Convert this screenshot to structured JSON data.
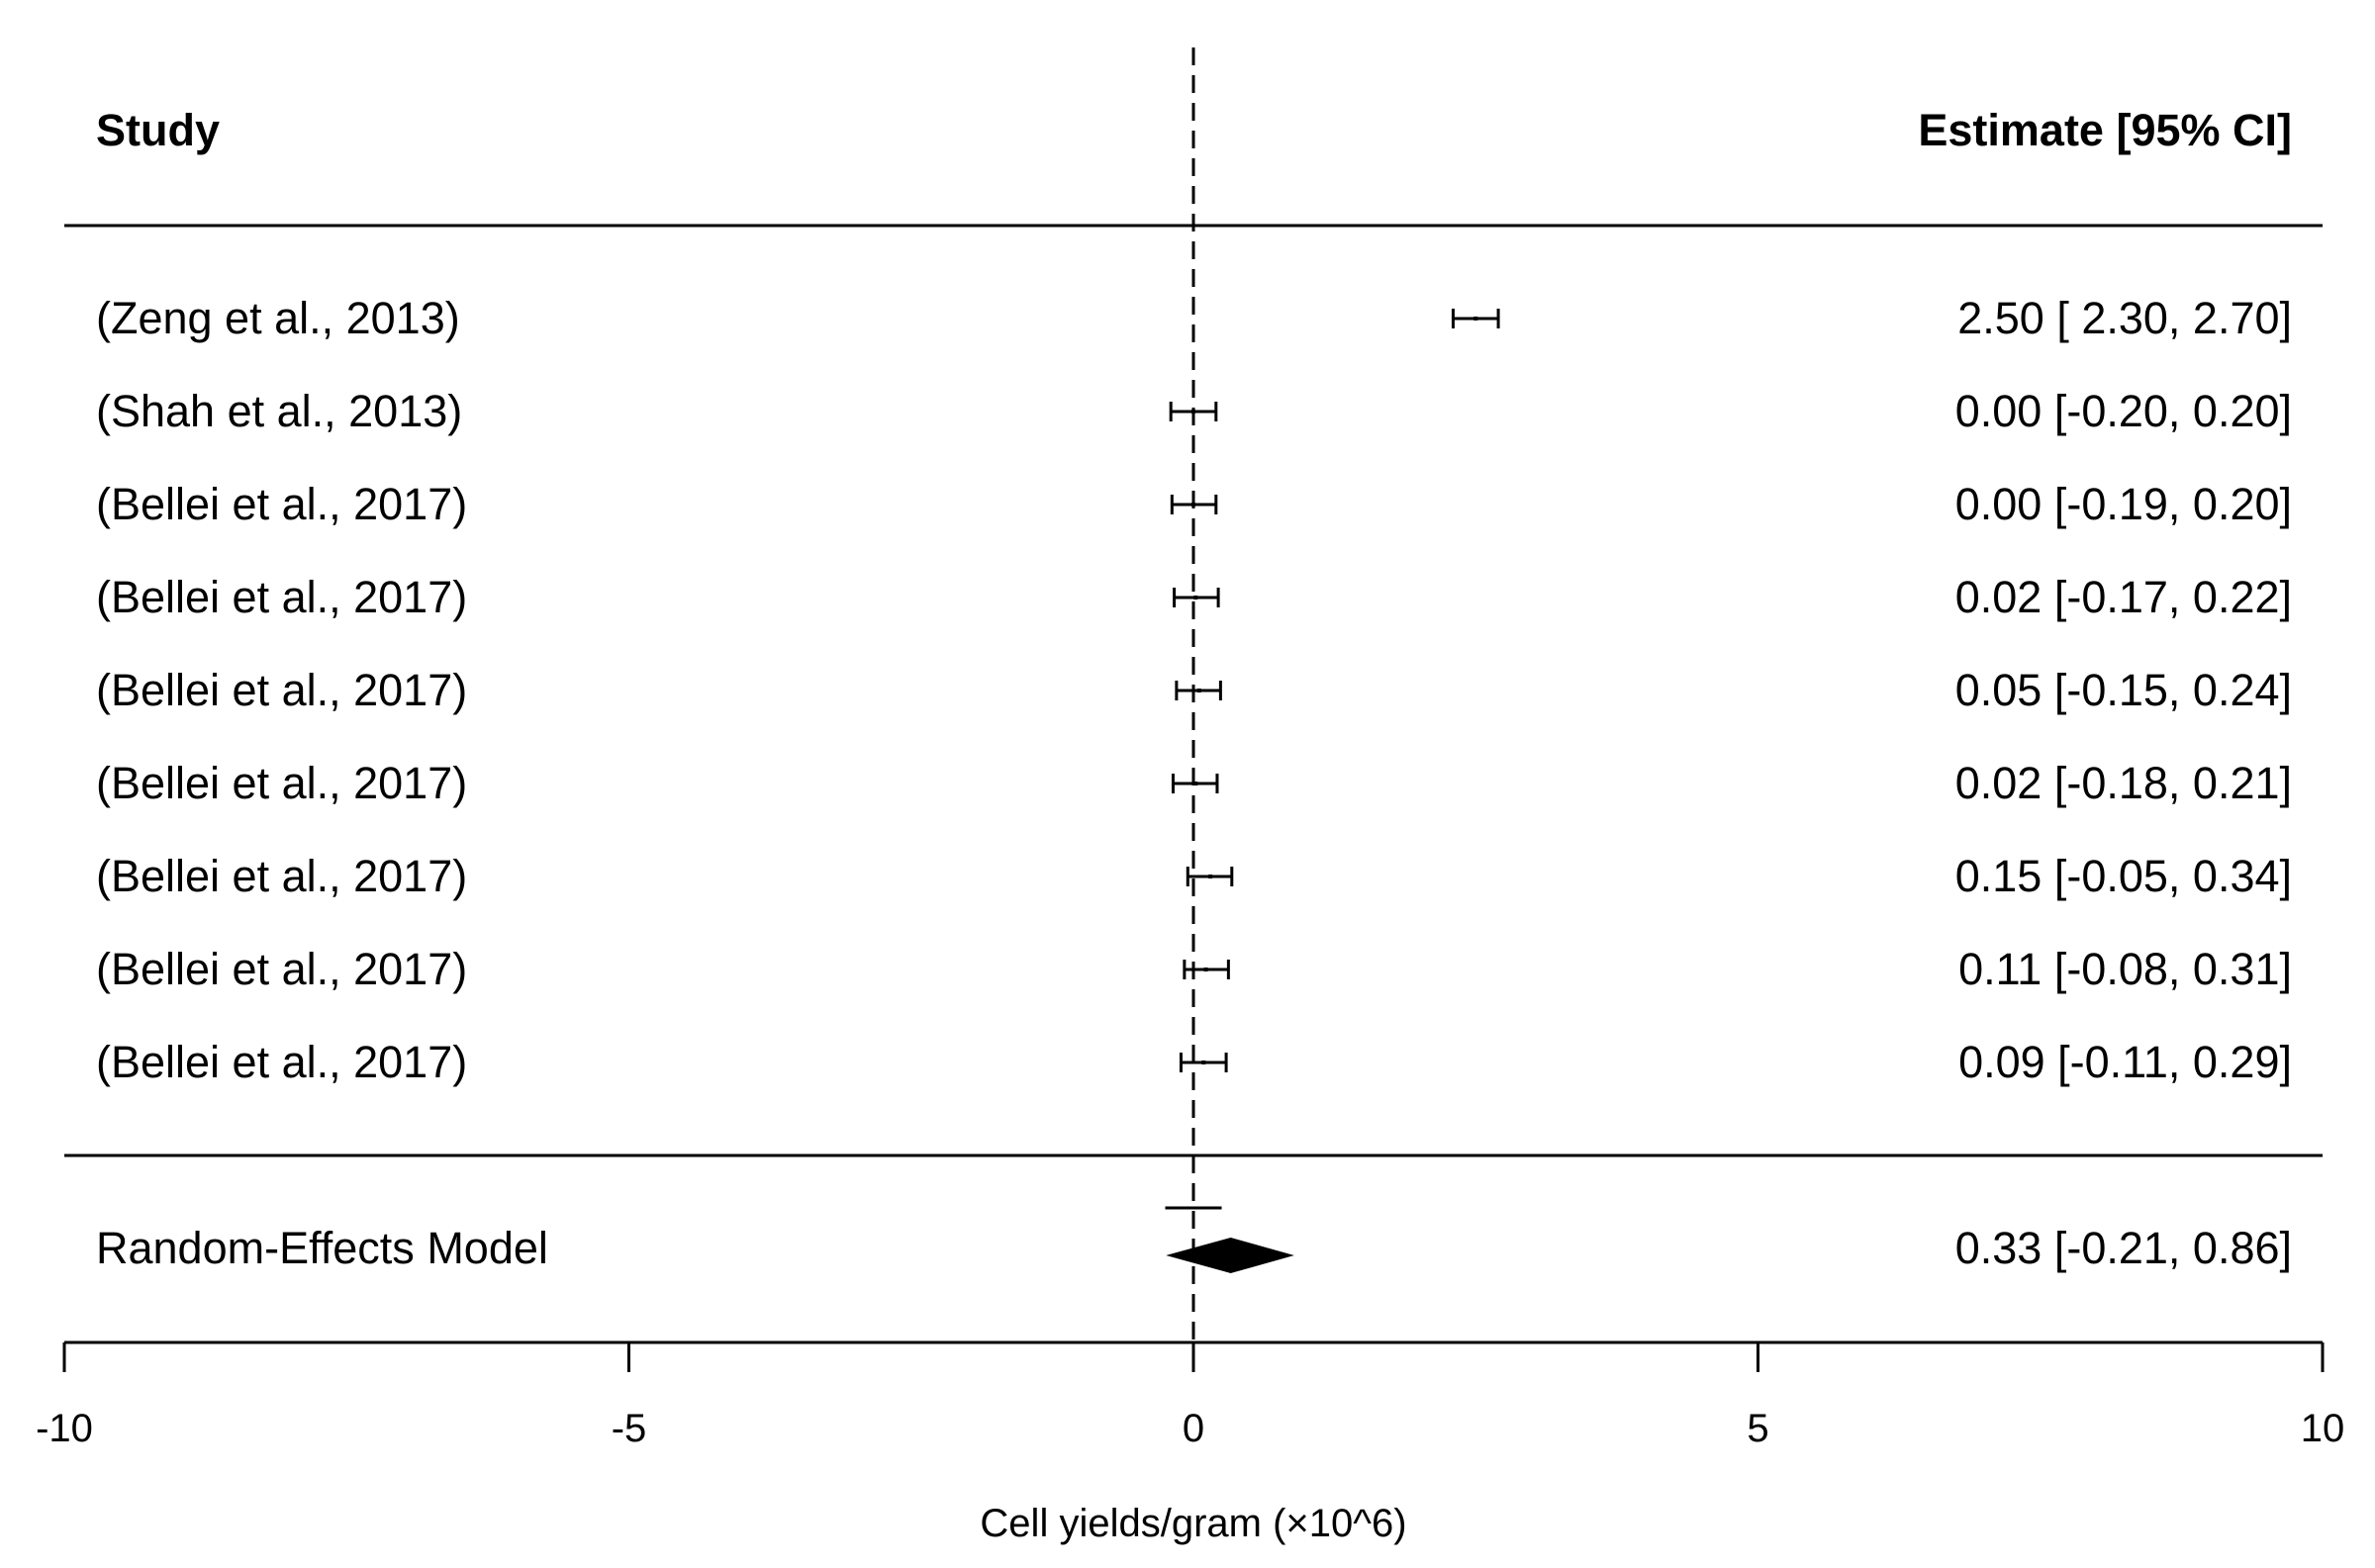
{
  "chart_data": {
    "type": "forest",
    "header": {
      "study_label": "Study",
      "estimate_label": "Estimate [95% CI]"
    },
    "studies": [
      {
        "label": "(Zeng et al., 2013)",
        "estimate": 2.5,
        "ci_low": 2.3,
        "ci_high": 2.7,
        "text": "2.50 [ 2.30, 2.70]"
      },
      {
        "label": "(Shah et al., 2013)",
        "estimate": 0.0,
        "ci_low": -0.2,
        "ci_high": 0.2,
        "text": "0.00 [-0.20, 0.20]"
      },
      {
        "label": "(Bellei et al., 2017)",
        "estimate": 0.0,
        "ci_low": -0.19,
        "ci_high": 0.2,
        "text": "0.00 [-0.19, 0.20]"
      },
      {
        "label": "(Bellei et al., 2017)",
        "estimate": 0.02,
        "ci_low": -0.17,
        "ci_high": 0.22,
        "text": "0.02 [-0.17, 0.22]"
      },
      {
        "label": "(Bellei et al., 2017)",
        "estimate": 0.05,
        "ci_low": -0.15,
        "ci_high": 0.24,
        "text": "0.05 [-0.15, 0.24]"
      },
      {
        "label": "(Bellei et al., 2017)",
        "estimate": 0.02,
        "ci_low": -0.18,
        "ci_high": 0.21,
        "text": "0.02 [-0.18, 0.21]"
      },
      {
        "label": "(Bellei et al., 2017)",
        "estimate": 0.15,
        "ci_low": -0.05,
        "ci_high": 0.34,
        "text": "0.15 [-0.05, 0.34]"
      },
      {
        "label": "(Bellei et al., 2017)",
        "estimate": 0.11,
        "ci_low": -0.08,
        "ci_high": 0.31,
        "text": "0.11 [-0.08, 0.31]"
      },
      {
        "label": "(Bellei et al., 2017)",
        "estimate": 0.09,
        "ci_low": -0.11,
        "ci_high": 0.29,
        "text": "0.09 [-0.11, 0.29]"
      }
    ],
    "summary": {
      "label": "Random-Effects Model",
      "estimate": 0.33,
      "ci_low": -0.21,
      "ci_high": 0.86,
      "prediction_low": -0.25,
      "prediction_high": 0.25,
      "text": "0.33 [-0.21, 0.86]"
    },
    "xlabel": "Cell yields/gram (×10^6)",
    "xlim": [
      -10,
      10
    ],
    "x_ticks": [
      -10,
      -5,
      0,
      5,
      10
    ],
    "x_tick_labels": [
      "-10",
      "-5",
      "0",
      "5",
      "10"
    ],
    "reference_line": 0
  }
}
